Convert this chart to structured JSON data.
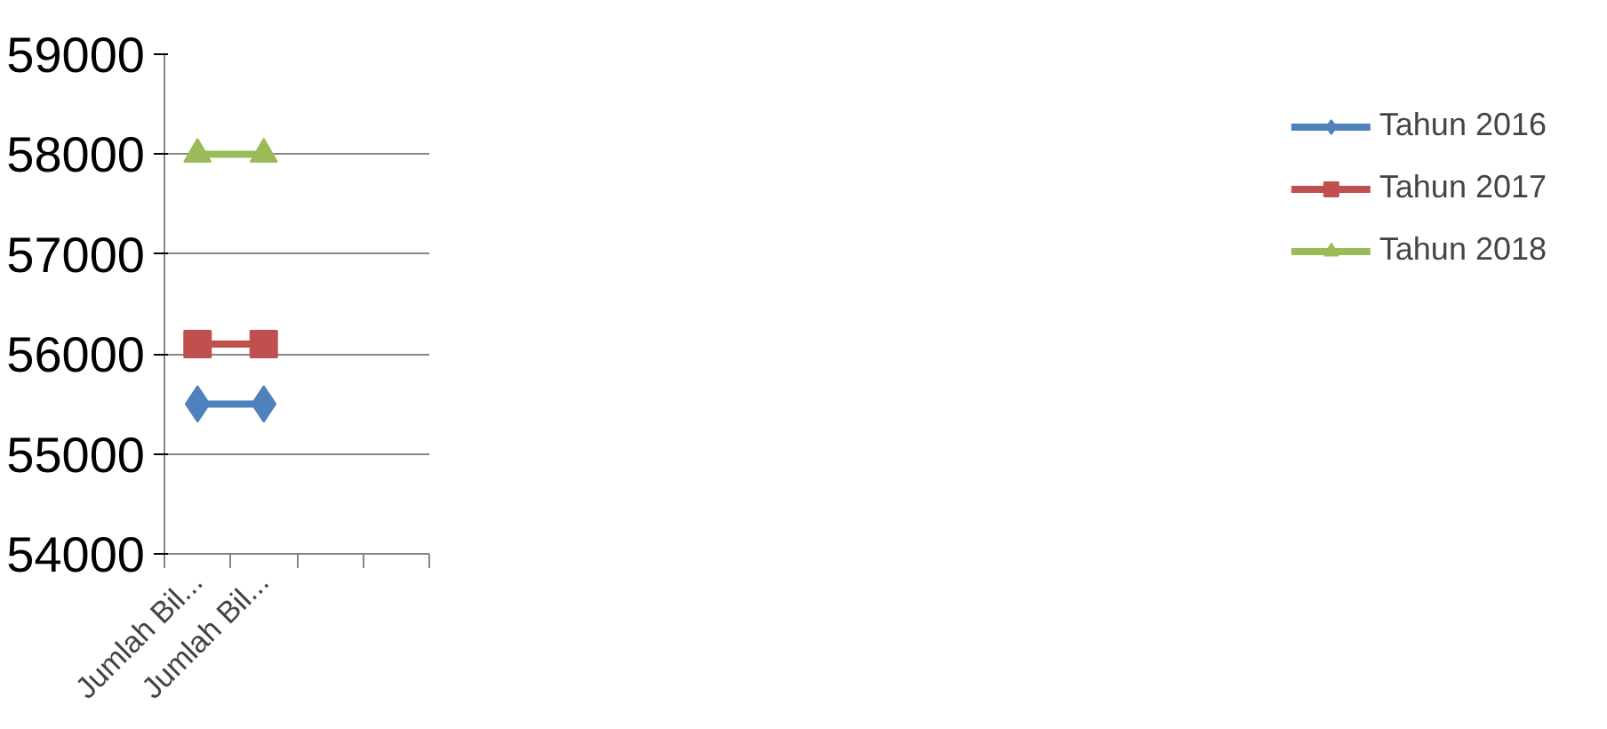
{
  "chart_data": {
    "type": "line",
    "categories": [
      "Jumlah Bil...",
      "Jumlah Bil...",
      null,
      null
    ],
    "series": [
      {
        "name": "Tahun 2016",
        "color": "#4f81bd",
        "marker": "diamond",
        "values": [
          55500,
          55500,
          null,
          null
        ]
      },
      {
        "name": "Tahun 2017",
        "color": "#c0504d",
        "marker": "square",
        "values": [
          56100,
          56100,
          null,
          null
        ]
      },
      {
        "name": "Tahun 2018",
        "color": "#9bbb59",
        "marker": "triangle",
        "values": [
          58000,
          58000,
          null,
          null
        ]
      }
    ],
    "ylim": [
      54000,
      59000
    ],
    "yticks": [
      54000,
      55000,
      56000,
      57000,
      58000,
      59000
    ],
    "grid": "y",
    "legend": "right"
  }
}
